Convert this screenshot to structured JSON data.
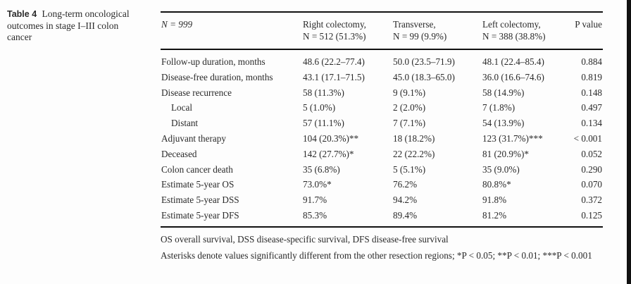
{
  "caption": {
    "label": "Table 4",
    "text": "Long-term oncological outcomes in stage I–III colon cancer"
  },
  "header": {
    "n_total": "N = 999",
    "columns": [
      {
        "line1": "Right colectomy,",
        "line2": "N = 512 (51.3%)"
      },
      {
        "line1": "Transverse,",
        "line2": "N = 99 (9.9%)"
      },
      {
        "line1": "Left colectomy,",
        "line2": "N = 388 (38.8%)"
      }
    ],
    "p_value": "P value"
  },
  "rows": [
    {
      "label": "Follow-up duration, months",
      "indent": false,
      "values": [
        "48.6 (22.2–77.4)",
        "50.0 (23.5–71.9)",
        "48.1 (22.4–85.4)"
      ],
      "p": "0.884"
    },
    {
      "label": "Disease-free duration, months",
      "indent": false,
      "values": [
        "43.1 (17.1–71.5)",
        "45.0 (18.3–65.0)",
        "36.0 (16.6–74.6)"
      ],
      "p": "0.819"
    },
    {
      "label": "Disease recurrence",
      "indent": false,
      "values": [
        "58 (11.3%)",
        "9 (9.1%)",
        "58 (14.9%)"
      ],
      "p": "0.148"
    },
    {
      "label": "Local",
      "indent": true,
      "values": [
        "5 (1.0%)",
        "2 (2.0%)",
        "7 (1.8%)"
      ],
      "p": "0.497"
    },
    {
      "label": "Distant",
      "indent": true,
      "values": [
        "57 (11.1%)",
        "7 (7.1%)",
        "54 (13.9%)"
      ],
      "p": "0.134"
    },
    {
      "label": "Adjuvant therapy",
      "indent": false,
      "values": [
        "104 (20.3%)**",
        "18 (18.2%)",
        "123 (31.7%)***"
      ],
      "p": "< 0.001"
    },
    {
      "label": "Deceased",
      "indent": false,
      "values": [
        "142 (27.7%)*",
        "22 (22.2%)",
        "81 (20.9%)*"
      ],
      "p": "0.052"
    },
    {
      "label": "Colon cancer death",
      "indent": false,
      "values": [
        "35 (6.8%)",
        "5 (5.1%)",
        "35 (9.0%)"
      ],
      "p": "0.290"
    },
    {
      "label": "Estimate 5-year OS",
      "indent": false,
      "values": [
        "73.0%*",
        "76.2%",
        "80.8%*"
      ],
      "p": "0.070"
    },
    {
      "label": "Estimate 5-year DSS",
      "indent": false,
      "values": [
        "91.7%",
        "94.2%",
        "91.8%"
      ],
      "p": "0.372"
    },
    {
      "label": "Estimate 5-year DFS",
      "indent": false,
      "values": [
        "85.3%",
        "89.4%",
        "81.2%"
      ],
      "p": "0.125"
    }
  ],
  "footnotes": {
    "abbreviations": "OS overall survival, DSS disease-specific survival, DFS disease-free survival",
    "asterisks": "Asterisks denote values significantly different from the other resection regions; *P < 0.05; **P < 0.01; ***P < 0.001"
  }
}
